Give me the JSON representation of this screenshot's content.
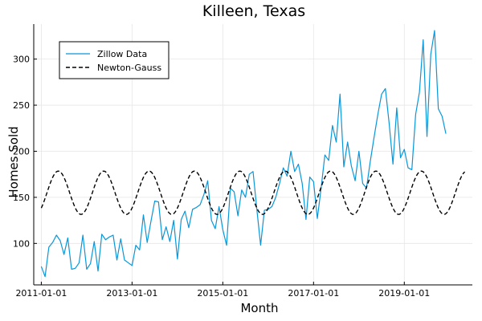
{
  "chart_data": {
    "type": "line",
    "title": "Killeen, Texas",
    "xlabel": "Month",
    "ylabel": "Homes Sold",
    "x_tick_labels": [
      "2011-01-01",
      "2013-01-01",
      "2015-01-01",
      "2017-01-01",
      "2019-01-01"
    ],
    "y_ticks": [
      100,
      150,
      200,
      250,
      300
    ],
    "xlim": [
      "2010-11-01",
      "2020-07-01"
    ],
    "ylim": [
      55,
      338
    ],
    "grid": true,
    "legend_position": "top-left",
    "series": [
      {
        "name": "Zillow Data",
        "color": "#0a97d9",
        "dash": "solid",
        "x": [
          "2011-01-01",
          "2011-02-01",
          "2011-03-01",
          "2011-04-01",
          "2011-05-01",
          "2011-06-01",
          "2011-07-01",
          "2011-08-01",
          "2011-09-01",
          "2011-10-01",
          "2011-11-01",
          "2011-12-01",
          "2012-01-01",
          "2012-02-01",
          "2012-03-01",
          "2012-04-01",
          "2012-05-01",
          "2012-06-01",
          "2012-07-01",
          "2012-08-01",
          "2012-09-01",
          "2012-10-01",
          "2012-11-01",
          "2012-12-01",
          "2013-01-01",
          "2013-02-01",
          "2013-03-01",
          "2013-04-01",
          "2013-05-01",
          "2013-06-01",
          "2013-07-01",
          "2013-08-01",
          "2013-09-01",
          "2013-10-01",
          "2013-11-01",
          "2013-12-01",
          "2014-01-01",
          "2014-02-01",
          "2014-03-01",
          "2014-04-01",
          "2014-05-01",
          "2014-06-01",
          "2014-07-01",
          "2014-08-01",
          "2014-09-01",
          "2014-10-01",
          "2014-11-01",
          "2014-12-01",
          "2015-01-01",
          "2015-02-01",
          "2015-03-01",
          "2015-04-01",
          "2015-05-01",
          "2015-06-01",
          "2015-07-01",
          "2015-08-01",
          "2015-09-01",
          "2015-10-01",
          "2015-11-01",
          "2015-12-01",
          "2016-01-01",
          "2016-02-01",
          "2016-03-01",
          "2016-04-01",
          "2016-05-01",
          "2016-06-01",
          "2016-07-01",
          "2016-08-01",
          "2016-09-01",
          "2016-10-01",
          "2016-11-01",
          "2016-12-01",
          "2017-01-01",
          "2017-02-01",
          "2017-03-01",
          "2017-04-01",
          "2017-05-01",
          "2017-06-01",
          "2017-07-01",
          "2017-08-01",
          "2017-09-01",
          "2017-10-01",
          "2017-11-01",
          "2017-12-01",
          "2018-01-01",
          "2018-02-01",
          "2018-03-01",
          "2018-04-01",
          "2018-05-01",
          "2018-06-01",
          "2018-07-01",
          "2018-08-01",
          "2018-09-01",
          "2018-10-01",
          "2018-11-01",
          "2018-12-01",
          "2019-01-01",
          "2019-02-01",
          "2019-03-01",
          "2019-04-01",
          "2019-05-01",
          "2019-06-01",
          "2019-07-01",
          "2019-08-01",
          "2019-09-01",
          "2019-10-01",
          "2019-11-01",
          "2019-12-01"
        ],
        "y": [
          75,
          64,
          96,
          101,
          109,
          103,
          88,
          106,
          72,
          73,
          79,
          109,
          72,
          78,
          102,
          70,
          110,
          104,
          107,
          109,
          82,
          105,
          82,
          79,
          76,
          98,
          93,
          131,
          101,
          124,
          146,
          145,
          104,
          118,
          102,
          125,
          83,
          126,
          135,
          117,
          137,
          139,
          142,
          153,
          168,
          125,
          116,
          140,
          115,
          98,
          160,
          156,
          130,
          158,
          150,
          175,
          178,
          137,
          98,
          136,
          137,
          140,
          150,
          165,
          182,
          173,
          200,
          178,
          186,
          165,
          126,
          172,
          167,
          127,
          160,
          196,
          190,
          228,
          210,
          262,
          183,
          210,
          184,
          168,
          200,
          165,
          160,
          189,
          215,
          240,
          262,
          268,
          230,
          186,
          247,
          193,
          202,
          182,
          180,
          240,
          264,
          321,
          216,
          305,
          331,
          246,
          238,
          219
        ]
      },
      {
        "name": "Newton-Gauss",
        "color": "#000000",
        "dash": "dashed",
        "fit": {
          "offset": 155,
          "amplitude": 23.5,
          "period_months": 12,
          "peak_month_offset": 4.5
        },
        "x_start": "2011-01-01",
        "x_end": "2020-05-01"
      }
    ]
  }
}
